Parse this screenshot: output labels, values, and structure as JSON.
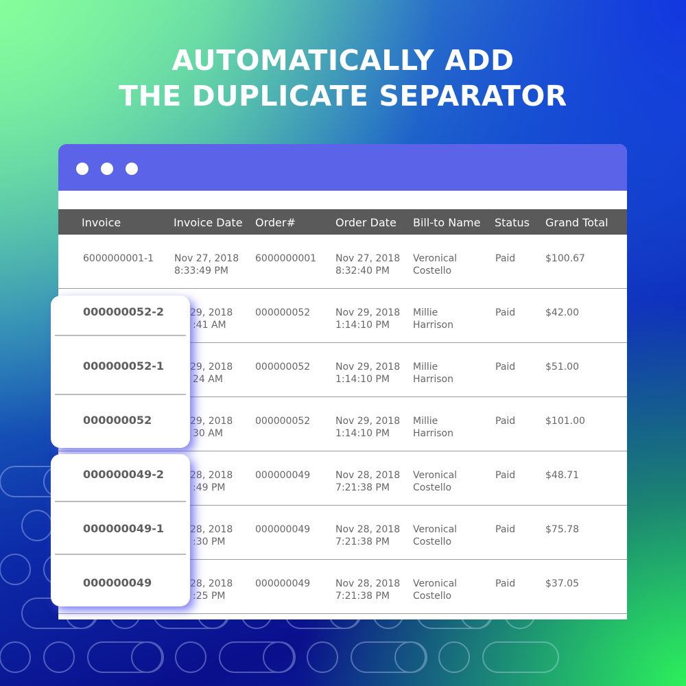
{
  "headline": {
    "line1": "AUTOMATICALLY ADD",
    "line2": "THE DUPLICATE SEPARATOR"
  },
  "colors": {
    "titlebar": "#5b63e8",
    "table_header": "#5a5a5a"
  },
  "window": {
    "controls": [
      "dot",
      "dot",
      "dot"
    ]
  },
  "table": {
    "columns": [
      "Invoice",
      "Invoice Date",
      "Order#",
      "Order Date",
      "Bill-to Name",
      "Status",
      "Grand Total"
    ],
    "rows": [
      {
        "invoice": "6000000001-1",
        "inv_date": "Nov 27, 2018",
        "inv_time": "8:33:49 PM",
        "order": "6000000001",
        "ord_date": "Nov 27, 2018",
        "ord_time": "8:32:40 PM",
        "name1": "Veronical",
        "name2": "Costello",
        "status": "Paid",
        "total": "$100.67"
      },
      {
        "invoice": "000000052-2",
        "inv_date": "29, 2018",
        "inv_time": ":41 AM",
        "order": "000000052",
        "ord_date": "Nov 29, 2018",
        "ord_time": "1:14:10 PM",
        "name1": "Millie",
        "name2": "Harrison",
        "status": "Paid",
        "total": "$42.00"
      },
      {
        "invoice": "000000052-1",
        "inv_date": "29, 2018",
        "inv_time": "24 AM",
        "order": "000000052",
        "ord_date": "Nov 29, 2018",
        "ord_time": "1:14:10 PM",
        "name1": "Millie",
        "name2": "Harrison",
        "status": "Paid",
        "total": "$51.00"
      },
      {
        "invoice": "000000052",
        "inv_date": "29, 2018",
        "inv_time": "30 AM",
        "order": "000000052",
        "ord_date": "Nov 29, 2018",
        "ord_time": "1:14:10 PM",
        "name1": "Millie",
        "name2": "Harrison",
        "status": "Paid",
        "total": "$101.00"
      },
      {
        "invoice": "000000049-2",
        "inv_date": "28,  2018",
        "inv_time": ":49 PM",
        "order": "000000049",
        "ord_date": "Nov 28, 2018",
        "ord_time": "7:21:38 PM",
        "name1": "Veronical",
        "name2": "Costello",
        "status": "Paid",
        "total": "$48.71"
      },
      {
        "invoice": "000000049-1",
        "inv_date": "28, 2018",
        "inv_time": ":30 PM",
        "order": "000000049",
        "ord_date": "Nov 28, 2018",
        "ord_time": "7:21:38 PM",
        "name1": "Veronical",
        "name2": "Costello",
        "status": "Paid",
        "total": "$75.78"
      },
      {
        "invoice": "000000049",
        "inv_date": "28, 2018",
        "inv_time": ":25 PM",
        "order": "000000049",
        "ord_date": "Nov 28, 2018",
        "ord_time": "7:21:38 PM",
        "name1": "Veronical",
        "name2": "Costello",
        "status": "Paid",
        "total": "$37.05"
      }
    ]
  }
}
